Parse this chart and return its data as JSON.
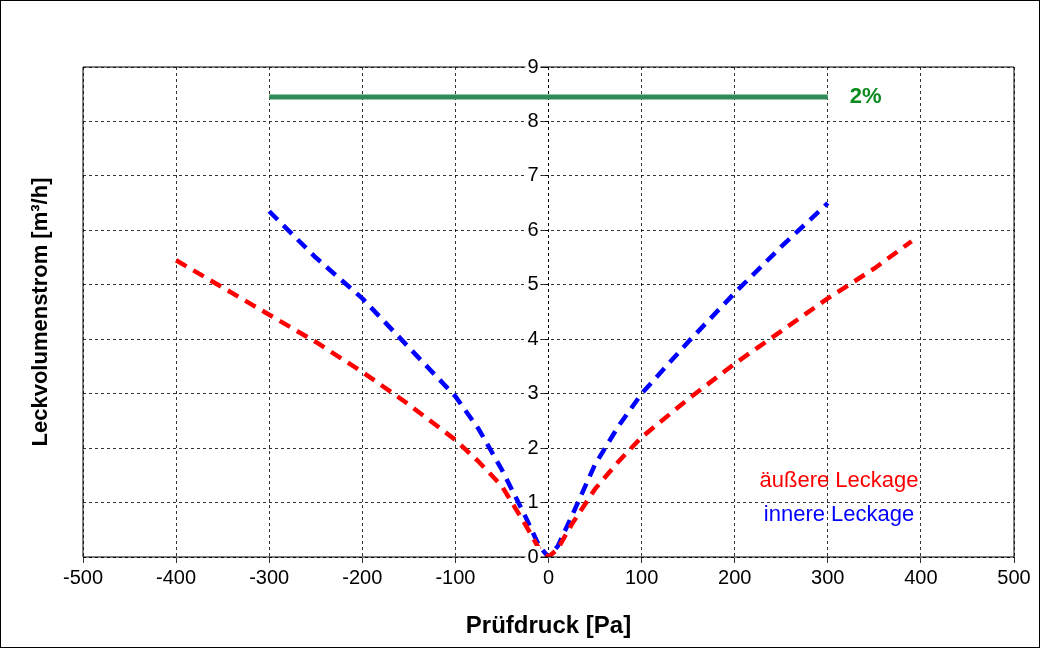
{
  "chart_data": {
    "type": "line",
    "xlabel": "Prüfdruck [Pa]",
    "ylabel": "Leckvolumenstrom [m³/h]",
    "xlim": [
      -500,
      500
    ],
    "xticks": [
      -500,
      -400,
      -300,
      -200,
      -100,
      0,
      100,
      200,
      300,
      400,
      500
    ],
    "ylim": [
      0,
      9
    ],
    "yticks": [
      0,
      1,
      2,
      3,
      4,
      5,
      6,
      7,
      8,
      9
    ],
    "grid": true,
    "legend": "bottom right",
    "marker": "none",
    "series": [
      {
        "name": "äußere Leckage",
        "color": "#ff0000",
        "line_style": "dashed",
        "x": [
          -400,
          -350,
          -300,
          -250,
          -200,
          -150,
          -100,
          -75,
          -50,
          -25,
          -10,
          0,
          10,
          25,
          50,
          75,
          100,
          150,
          200,
          250,
          300,
          350,
          390
        ],
        "values": [
          5.45,
          4.95,
          4.45,
          3.95,
          3.4,
          2.8,
          2.15,
          1.75,
          1.3,
          0.6,
          0.15,
          0,
          0.15,
          0.6,
          1.25,
          1.75,
          2.2,
          2.9,
          3.55,
          4.15,
          4.75,
          5.3,
          5.8
        ]
      },
      {
        "name": "innere Leckage",
        "color": "#0000ff",
        "line_style": "dashed",
        "x": [
          -300,
          -250,
          -200,
          -150,
          -100,
          -75,
          -50,
          -25,
          -10,
          0,
          10,
          25,
          50,
          75,
          100,
          150,
          200,
          250,
          300
        ],
        "values": [
          6.35,
          5.5,
          4.75,
          3.85,
          2.95,
          2.35,
          1.6,
          0.75,
          0.2,
          0,
          0.2,
          0.75,
          1.7,
          2.4,
          3.0,
          3.95,
          4.85,
          5.7,
          6.5
        ]
      },
      {
        "color": "#2e8b57",
        "line_style": "solid",
        "x": [
          -300,
          300
        ],
        "values": [
          8.45,
          8.45
        ]
      }
    ],
    "annotations": [
      {
        "text": "2%",
        "x": 300,
        "y": 8.45
      }
    ]
  }
}
